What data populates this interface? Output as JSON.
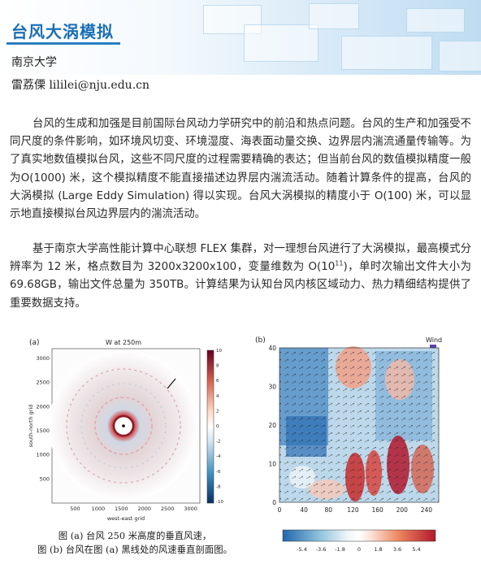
{
  "header": {
    "title": "台风大涡模拟",
    "affiliation": "南京大学",
    "author": "雷荔傈 lililei@nju.edu.cn"
  },
  "body": {
    "paragraph_1": "台风的生成和加强是目前国际台风动力学研究中的前沿和热点问题。台风的生产和加强受不同尺度的条件影响，如环境风切变、环境湿度、海表面动量交换、边界层内湍流通量传输等。为了真实地数值模拟台风，这些不同尺度的过程需要精确的表达；但当前台风的数值模拟精度一般为O(1000) 米，这个模拟精度不能直接描述边界层内湍流活动。随着计算条件的提高，台风的大涡模拟 (Large Eddy Simulation) 得以实现。台风大涡模拟的精度小于 O(100) 米，可以显示地直接模拟台风边界层内的湍流活动。",
    "paragraph_2_before_sup": "基于南京大学高性能计算中心联想 FLEX 集群，对一理想台风进行了大涡模拟，最高模式分辨率为 12 米，格点数目为 3200x3200x100，变量维数为 O(10",
    "paragraph_2_sup": "11",
    "paragraph_2_after_sup": ")，单时次输出文件大小为 69.68GB，输出文件总量为 350TB。计算结果为认知台风内核区域动力、热力精细结构提供了重要数据支持。"
  },
  "figure": {
    "caption_line1": "图 (a) 台风 250 米高度的垂直风速，",
    "caption_line2": "图 (b) 台风在图 (a) 黑线处的风速垂直剖面图。",
    "panel_a": {
      "label": "(a)",
      "title": "W at 250m",
      "xlabel": "west-east grid",
      "ylabel": "south-north grid",
      "xticks": [
        "500",
        "1000",
        "1500",
        "2000",
        "2500",
        "3000"
      ],
      "yticks": [
        "500",
        "1000",
        "1500",
        "2000",
        "2500",
        "3000"
      ],
      "colorbar_ticks": [
        "10",
        "8",
        "6",
        "4",
        "2",
        "0",
        "-2",
        "-4",
        "-6",
        "-8",
        "-10"
      ]
    },
    "panel_b": {
      "label": "(b)",
      "legend_text": "Wind",
      "xticks": [
        "0",
        "40",
        "80",
        "120",
        "160",
        "200",
        "240"
      ],
      "yticks": [
        "40",
        "30",
        "20",
        "10",
        "0"
      ],
      "colorbar_ticks": [
        "-5.4",
        "-3.6",
        "-1.8",
        "0",
        "1.8",
        "3.6",
        "5.4"
      ]
    },
    "colors": {
      "accent": "#1a6fb5",
      "positive": "#c8201e",
      "negative": "#2166ac"
    }
  }
}
